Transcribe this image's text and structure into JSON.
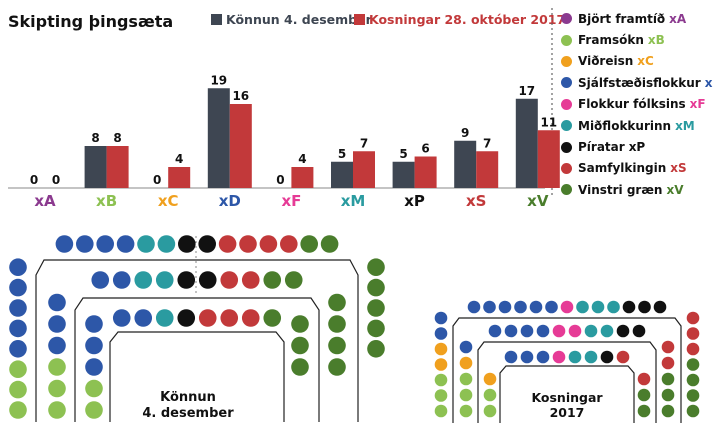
{
  "chart_data": {
    "type": "bar",
    "title": "Skipting þingsæta",
    "categories": [
      "xA",
      "xB",
      "xC",
      "xD",
      "xF",
      "xM",
      "xP",
      "xS",
      "xV"
    ],
    "category_colors": [
      "#8b3a8f",
      "#8dc152",
      "#f0a01e",
      "#2d57a8",
      "#e63b96",
      "#2a9ba0",
      "#111111",
      "#c2393a",
      "#4a7d2c"
    ],
    "series": [
      {
        "name": "Könnun 4. desember",
        "color": "#3e4652",
        "values": [
          0,
          8,
          0,
          19,
          0,
          5,
          5,
          9,
          17
        ]
      },
      {
        "name": "Kosningar 28. október 2017",
        "color": "#c2393a",
        "values": [
          0,
          8,
          4,
          16,
          4,
          7,
          6,
          7,
          11
        ]
      }
    ],
    "ylim": [
      0,
      20
    ],
    "grid": false,
    "legend_position": "top"
  },
  "parties": [
    {
      "name": "Björt framtíð",
      "code": "xA",
      "color": "#8b3a8f"
    },
    {
      "name": "Framsókn",
      "code": "xB",
      "color": "#8dc152"
    },
    {
      "name": "Viðreisn",
      "code": "xC",
      "color": "#f0a01e"
    },
    {
      "name": "Sjálfstæðisflokkur",
      "code": "xD",
      "color": "#2d57a8"
    },
    {
      "name": "Flokkur fólksins",
      "code": "xF",
      "color": "#e63b96"
    },
    {
      "name": "Miðflokkurinn",
      "code": "xM",
      "color": "#2a9ba0"
    },
    {
      "name": "Píratar",
      "code": "xP",
      "color": "#111111"
    },
    {
      "name": "Samfylkingin",
      "code": "xS",
      "color": "#c2393a"
    },
    {
      "name": "Vinstri græn",
      "code": "xV",
      "color": "#4a7d2c"
    }
  ],
  "hemicycles": [
    {
      "line1": "Könnun",
      "line2": "4. desember",
      "counts": [
        0,
        8,
        0,
        19,
        0,
        5,
        5,
        9,
        17
      ]
    },
    {
      "line1": "Kosningar",
      "line2": "2017",
      "counts": [
        0,
        8,
        4,
        16,
        4,
        7,
        6,
        7,
        11
      ]
    }
  ]
}
